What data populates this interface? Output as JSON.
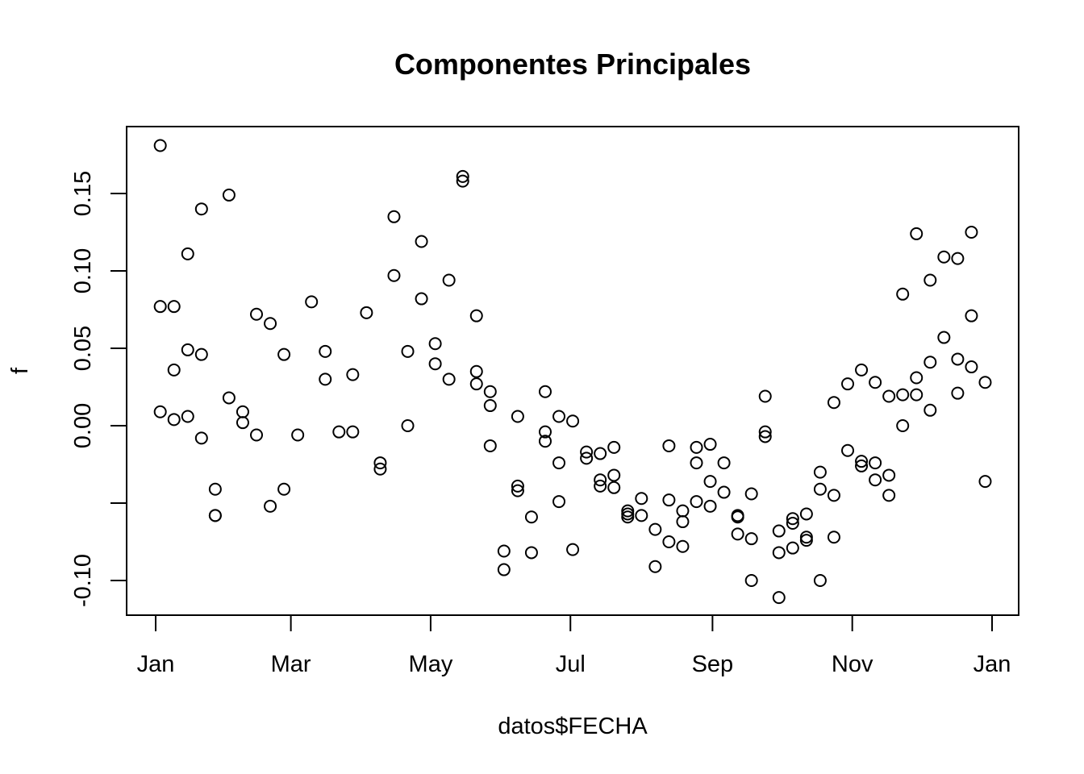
{
  "chart_data": {
    "type": "scatter",
    "title": "Componentes Principales",
    "xlabel": "datos$FECHA",
    "ylabel": "f",
    "xlim": [
      0,
      365
    ],
    "ylim": [
      -0.12,
      0.18
    ],
    "x_ticks": [
      {
        "value": 0,
        "label": "Jan"
      },
      {
        "value": 59,
        "label": "Mar"
      },
      {
        "value": 120,
        "label": "May"
      },
      {
        "value": 181,
        "label": "Jul"
      },
      {
        "value": 243,
        "label": "Sep"
      },
      {
        "value": 304,
        "label": "Nov"
      },
      {
        "value": 365,
        "label": "Jan"
      }
    ],
    "y_ticks": [
      {
        "value": -0.1,
        "label": "-0.10"
      },
      {
        "value": -0.05,
        "label": ""
      },
      {
        "value": 0.0,
        "label": "0.00"
      },
      {
        "value": 0.05,
        "label": "0.05"
      },
      {
        "value": 0.1,
        "label": "0.10"
      },
      {
        "value": 0.15,
        "label": "0.15"
      }
    ],
    "grid": false,
    "marker": "open-circle",
    "points": [
      [
        2,
        0.181
      ],
      [
        2,
        0.077
      ],
      [
        2,
        0.009
      ],
      [
        8,
        0.077
      ],
      [
        8,
        0.036
      ],
      [
        8,
        0.004
      ],
      [
        14,
        0.111
      ],
      [
        14,
        0.049
      ],
      [
        14,
        0.006
      ],
      [
        20,
        0.14
      ],
      [
        20,
        0.046
      ],
      [
        20,
        -0.008
      ],
      [
        26,
        -0.041
      ],
      [
        26,
        -0.058
      ],
      [
        26,
        -0.058
      ],
      [
        32,
        0.149
      ],
      [
        32,
        0.018
      ],
      [
        38,
        0.009
      ],
      [
        38,
        0.002
      ],
      [
        44,
        0.072
      ],
      [
        44,
        -0.006
      ],
      [
        50,
        0.066
      ],
      [
        50,
        -0.052
      ],
      [
        56,
        0.046
      ],
      [
        56,
        -0.041
      ],
      [
        62,
        -0.006
      ],
      [
        68,
        0.08
      ],
      [
        74,
        0.048
      ],
      [
        74,
        0.03
      ],
      [
        80,
        -0.004
      ],
      [
        86,
        0.033
      ],
      [
        86,
        -0.004
      ],
      [
        92,
        0.073
      ],
      [
        98,
        -0.024
      ],
      [
        98,
        -0.028
      ],
      [
        104,
        0.135
      ],
      [
        104,
        0.097
      ],
      [
        110,
        0.048
      ],
      [
        110,
        0.0
      ],
      [
        116,
        0.119
      ],
      [
        116,
        0.082
      ],
      [
        122,
        0.053
      ],
      [
        122,
        0.04
      ],
      [
        128,
        0.094
      ],
      [
        128,
        0.03
      ],
      [
        134,
        0.161
      ],
      [
        134,
        0.158
      ],
      [
        140,
        0.071
      ],
      [
        140,
        0.035
      ],
      [
        140,
        0.027
      ],
      [
        146,
        0.022
      ],
      [
        146,
        0.013
      ],
      [
        146,
        -0.013
      ],
      [
        152,
        -0.081
      ],
      [
        152,
        -0.093
      ],
      [
        158,
        0.006
      ],
      [
        158,
        -0.039
      ],
      [
        158,
        -0.042
      ],
      [
        164,
        -0.059
      ],
      [
        164,
        -0.082
      ],
      [
        170,
        0.022
      ],
      [
        170,
        -0.004
      ],
      [
        170,
        -0.01
      ],
      [
        176,
        0.006
      ],
      [
        176,
        -0.024
      ],
      [
        176,
        -0.049
      ],
      [
        182,
        0.003
      ],
      [
        182,
        -0.08
      ],
      [
        188,
        -0.017
      ],
      [
        188,
        -0.021
      ],
      [
        194,
        -0.018
      ],
      [
        194,
        -0.035
      ],
      [
        194,
        -0.039
      ],
      [
        200,
        -0.014
      ],
      [
        200,
        -0.032
      ],
      [
        200,
        -0.04
      ],
      [
        206,
        -0.055
      ],
      [
        206,
        -0.057
      ],
      [
        206,
        -0.059
      ],
      [
        212,
        -0.047
      ],
      [
        212,
        -0.058
      ],
      [
        218,
        -0.067
      ],
      [
        218,
        -0.091
      ],
      [
        224,
        -0.013
      ],
      [
        224,
        -0.048
      ],
      [
        224,
        -0.075
      ],
      [
        230,
        -0.055
      ],
      [
        230,
        -0.062
      ],
      [
        230,
        -0.078
      ],
      [
        236,
        -0.014
      ],
      [
        236,
        -0.024
      ],
      [
        236,
        -0.049
      ],
      [
        242,
        -0.012
      ],
      [
        242,
        -0.036
      ],
      [
        242,
        -0.052
      ],
      [
        248,
        -0.024
      ],
      [
        248,
        -0.043
      ],
      [
        254,
        -0.058
      ],
      [
        254,
        -0.059
      ],
      [
        254,
        -0.07
      ],
      [
        260,
        -0.044
      ],
      [
        260,
        -0.073
      ],
      [
        260,
        -0.1
      ],
      [
        266,
        0.019
      ],
      [
        266,
        -0.004
      ],
      [
        266,
        -0.007
      ],
      [
        272,
        -0.068
      ],
      [
        272,
        -0.082
      ],
      [
        272,
        -0.111
      ],
      [
        278,
        -0.06
      ],
      [
        278,
        -0.063
      ],
      [
        278,
        -0.079
      ],
      [
        284,
        -0.057
      ],
      [
        284,
        -0.072
      ],
      [
        284,
        -0.074
      ],
      [
        290,
        -0.03
      ],
      [
        290,
        -0.041
      ],
      [
        290,
        -0.1
      ],
      [
        296,
        0.015
      ],
      [
        296,
        -0.045
      ],
      [
        296,
        -0.072
      ],
      [
        302,
        0.027
      ],
      [
        302,
        -0.016
      ],
      [
        308,
        0.036
      ],
      [
        308,
        -0.023
      ],
      [
        308,
        -0.026
      ],
      [
        314,
        0.028
      ],
      [
        314,
        -0.024
      ],
      [
        314,
        -0.035
      ],
      [
        320,
        0.019
      ],
      [
        320,
        -0.032
      ],
      [
        320,
        -0.045
      ],
      [
        326,
        0.085
      ],
      [
        326,
        0.02
      ],
      [
        326,
        0.0
      ],
      [
        332,
        0.124
      ],
      [
        332,
        0.031
      ],
      [
        332,
        0.02
      ],
      [
        338,
        0.094
      ],
      [
        338,
        0.041
      ],
      [
        338,
        0.01
      ],
      [
        344,
        0.109
      ],
      [
        344,
        0.057
      ],
      [
        350,
        0.108
      ],
      [
        350,
        0.043
      ],
      [
        350,
        0.021
      ],
      [
        356,
        0.125
      ],
      [
        356,
        0.071
      ],
      [
        356,
        0.038
      ],
      [
        362,
        0.028
      ],
      [
        362,
        -0.036
      ]
    ]
  }
}
